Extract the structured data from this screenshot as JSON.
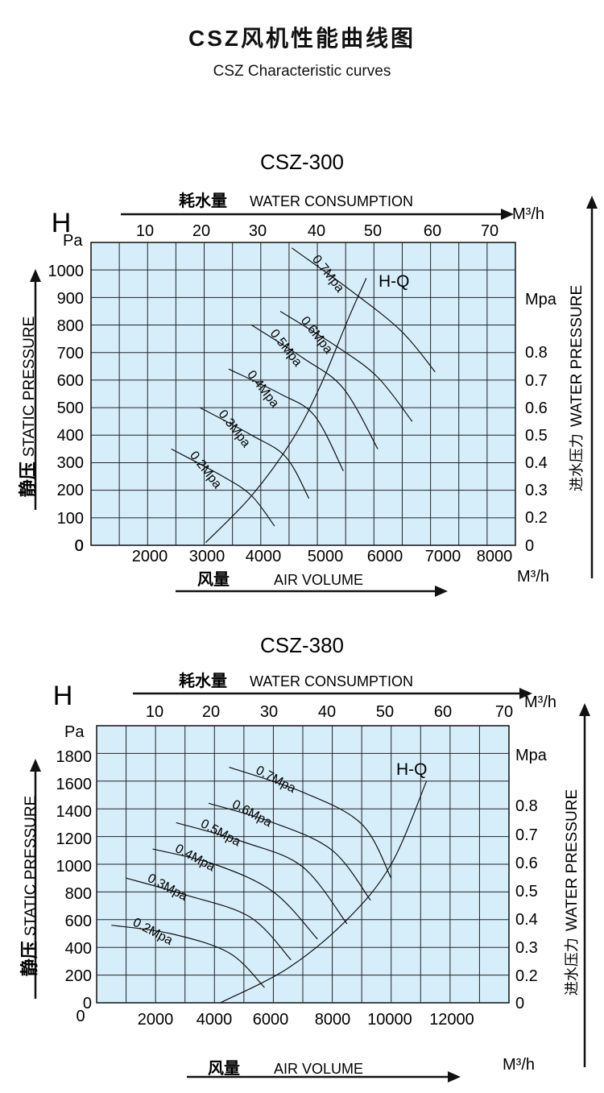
{
  "page": {
    "title": "CSZ风机性能曲线图",
    "subtitle": "CSZ Characteristic curves"
  },
  "chart_data": [
    {
      "type": "line",
      "title": "CSZ-300",
      "top_axis_label_cn": "耗水量",
      "top_axis_label_en": "WATER CONSUMPTION",
      "top_axis_unit": "M³/h",
      "top_ticks": [
        "10",
        "20",
        "30",
        "40",
        "50",
        "60",
        "70"
      ],
      "xlabel_cn": "风量",
      "xlabel_en": "AIR VOLUME",
      "x_unit": "M³/h",
      "x_ticks": [
        "2000",
        "3000",
        "4000",
        "5000",
        "6000",
        "7000",
        "8000"
      ],
      "xlim": [
        1000,
        8400
      ],
      "ylabel_cn": "静压",
      "ylabel_en": "STATIC PRESSURE",
      "y_symbol": "H",
      "y_unit": "Pa",
      "y_ticks": [
        "0",
        "100",
        "200",
        "300",
        "400",
        "500",
        "600",
        "700",
        "800",
        "900",
        "1000"
      ],
      "ylim": [
        0,
        1100
      ],
      "right_axis_label_cn": "进水压力",
      "right_axis_label_en": "WATER PRESSURE",
      "right_axis_unit": "Mpa",
      "right_ticks": [
        "0",
        "0.2",
        "0.3",
        "0.4",
        "0.5",
        "0.6",
        "0.7",
        "0.8"
      ],
      "hq_label": "H-Q",
      "hq_curve": [
        [
          3000,
          10
        ],
        [
          3800,
          180
        ],
        [
          4500,
          380
        ],
        [
          5000,
          580
        ],
        [
          5500,
          830
        ],
        [
          5800,
          970
        ]
      ],
      "series": [
        {
          "name": "0.7Mpa",
          "points": [
            [
              4500,
              1080
            ],
            [
              5500,
              930
            ],
            [
              6400,
              780
            ],
            [
              7000,
              630
            ]
          ]
        },
        {
          "name": "0.6Mpa",
          "points": [
            [
              4300,
              850
            ],
            [
              5300,
              720
            ],
            [
              6000,
              610
            ],
            [
              6600,
              450
            ]
          ]
        },
        {
          "name": "0.5Mpa",
          "points": [
            [
              3800,
              800
            ],
            [
              4700,
              680
            ],
            [
              5400,
              570
            ],
            [
              6000,
              350
            ]
          ]
        },
        {
          "name": "0.4Mpa",
          "points": [
            [
              3400,
              640
            ],
            [
              4300,
              550
            ],
            [
              4900,
              470
            ],
            [
              5400,
              270
            ]
          ]
        },
        {
          "name": "0.3Mpa",
          "points": [
            [
              2900,
              500
            ],
            [
              3800,
              400
            ],
            [
              4400,
              320
            ],
            [
              4800,
              170
            ]
          ]
        },
        {
          "name": "0.2Mpa",
          "points": [
            [
              2400,
              350
            ],
            [
              3300,
              250
            ],
            [
              3800,
              180
            ],
            [
              4200,
              70
            ]
          ]
        }
      ]
    },
    {
      "type": "line",
      "title": "CSZ-380",
      "top_axis_label_cn": "耗水量",
      "top_axis_label_en": "WATER CONSUMPTION",
      "top_axis_unit": "M³/h",
      "top_ticks": [
        "10",
        "20",
        "30",
        "40",
        "50",
        "60",
        "70"
      ],
      "xlabel_cn": "风量",
      "xlabel_en": "AIR VOLUME",
      "x_unit": "M³/h",
      "x_ticks": [
        "2000",
        "4000",
        "6000",
        "8000",
        "10000",
        "12000"
      ],
      "xlim": [
        0,
        14000
      ],
      "ylabel_cn": "静压",
      "ylabel_en": "STATIC PRESSURE",
      "y_symbol": "H",
      "y_unit": "Pa",
      "y_ticks": [
        "0",
        "200",
        "400",
        "600",
        "800",
        "1000",
        "1200",
        "1400",
        "1600",
        "1800"
      ],
      "ylim": [
        0,
        2000
      ],
      "right_axis_label_cn": "进水压力",
      "right_axis_label_en": "WATER PRESSURE",
      "right_axis_unit": "Mpa",
      "right_ticks": [
        "0",
        "0.2",
        "0.3",
        "0.4",
        "0.5",
        "0.6",
        "0.7",
        "0.8"
      ],
      "hq_label": "H-Q",
      "hq_curve": [
        [
          4200,
          0
        ],
        [
          6500,
          250
        ],
        [
          8500,
          600
        ],
        [
          10000,
          1000
        ],
        [
          11200,
          1600
        ]
      ],
      "series": [
        {
          "name": "0.7Mpa",
          "points": [
            [
              4500,
              1700
            ],
            [
              7000,
              1520
            ],
            [
              9000,
              1290
            ],
            [
              10000,
              900
            ]
          ]
        },
        {
          "name": "0.6Mpa",
          "points": [
            [
              3800,
              1440
            ],
            [
              6000,
              1300
            ],
            [
              8000,
              1100
            ],
            [
              9300,
              740
            ]
          ]
        },
        {
          "name": "0.5Mpa",
          "points": [
            [
              2700,
              1300
            ],
            [
              5000,
              1160
            ],
            [
              7000,
              980
            ],
            [
              8500,
              570
            ]
          ]
        },
        {
          "name": "0.4Mpa",
          "points": [
            [
              1900,
              1110
            ],
            [
              4000,
              1000
            ],
            [
              6000,
              800
            ],
            [
              7500,
              460
            ]
          ]
        },
        {
          "name": "0.3Mpa",
          "points": [
            [
              1000,
              900
            ],
            [
              3000,
              780
            ],
            [
              5200,
              620
            ],
            [
              6600,
              310
            ]
          ]
        },
        {
          "name": "0.2Mpa",
          "points": [
            [
              500,
              560
            ],
            [
              2500,
              500
            ],
            [
              4500,
              360
            ],
            [
              5700,
              110
            ]
          ]
        }
      ]
    }
  ]
}
